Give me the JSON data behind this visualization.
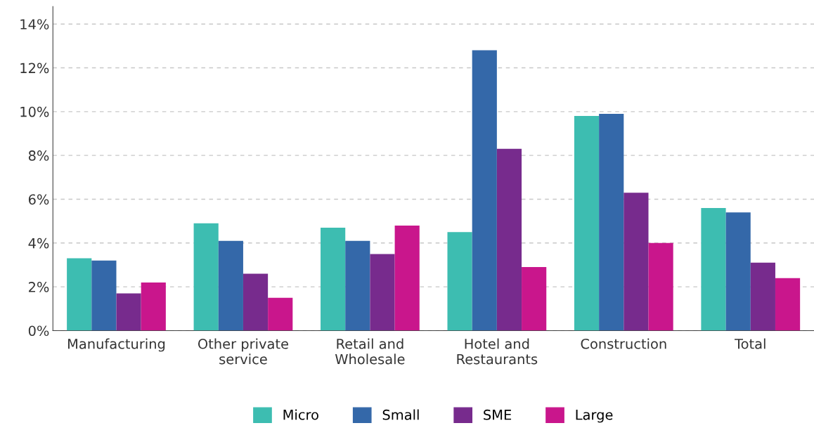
{
  "chart_data": {
    "type": "bar",
    "categories": [
      "Manufacturing",
      "Other private\nservice",
      "Retail and\nWholesale",
      "Hotel and\nRestaurants",
      "Construction",
      "Total"
    ],
    "series": [
      {
        "name": "Micro",
        "color": "#3dbdb1",
        "values": [
          3.3,
          4.9,
          4.7,
          4.5,
          9.8,
          5.6
        ]
      },
      {
        "name": "Small",
        "color": "#3468a9",
        "values": [
          3.2,
          4.1,
          4.1,
          12.8,
          9.9,
          5.4
        ]
      },
      {
        "name": "SME",
        "color": "#772b8d",
        "values": [
          1.7,
          2.6,
          3.5,
          8.3,
          6.3,
          3.1
        ]
      },
      {
        "name": "Large",
        "color": "#c9168c",
        "values": [
          2.2,
          1.5,
          4.8,
          2.9,
          4.0,
          2.4
        ]
      }
    ],
    "ylim": [
      0,
      14.8
    ],
    "yticks": [
      {
        "value": 0,
        "label": "0%"
      },
      {
        "value": 2,
        "label": "2%"
      },
      {
        "value": 4,
        "label": "4%"
      },
      {
        "value": 6,
        "label": "6%"
      },
      {
        "value": 8,
        "label": "8%"
      },
      {
        "value": 10,
        "label": "10%"
      },
      {
        "value": 12,
        "label": "12%"
      },
      {
        "value": 14,
        "label": "14%"
      }
    ],
    "grid": "y",
    "legend": "bottom"
  }
}
